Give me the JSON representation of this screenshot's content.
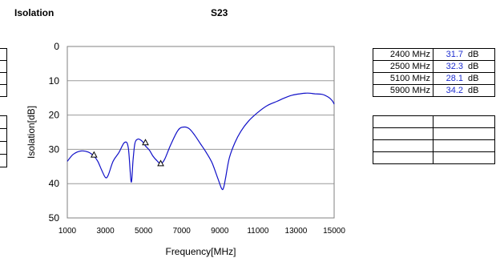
{
  "header": {
    "left_title": "Isolation",
    "center_title": "S23"
  },
  "chart_data": {
    "type": "line",
    "title": "S23",
    "xlabel": "Frequency[MHz]",
    "ylabel": "Isolation[dB]",
    "xlim": [
      1000,
      15000
    ],
    "ylim": [
      0,
      50
    ],
    "y_inverted": true,
    "xticks": [
      1000,
      3000,
      5000,
      7000,
      9000,
      11000,
      13000,
      15000
    ],
    "yticks": [
      0,
      10,
      20,
      30,
      40,
      50
    ],
    "grid": true,
    "line_color": "#1010c8",
    "series": [
      {
        "x": [
          1000,
          1300,
          1700,
          2100,
          2400,
          2600,
          2800,
          3000,
          3150,
          3400,
          3700,
          4000,
          4200,
          4350,
          4450,
          4550,
          4700,
          4850,
          5000,
          5100,
          5300,
          5500,
          5700,
          5900,
          6100,
          6400,
          6800,
          7100,
          7400,
          7700,
          8000,
          8300,
          8600,
          8900,
          9100,
          9200,
          9300,
          9500,
          9800,
          10100,
          10500,
          11000,
          11500,
          12000,
          12400,
          12800,
          13200,
          13600,
          14000,
          14400,
          14700,
          14900,
          15000
        ],
        "y": [
          33.5,
          31.5,
          30.5,
          30.8,
          32.0,
          33.5,
          36.0,
          38.2,
          37.5,
          33.5,
          31.0,
          28.0,
          29.5,
          39.5,
          33.0,
          28.2,
          27.0,
          27.3,
          28.1,
          29.0,
          30.2,
          32.0,
          33.3,
          34.2,
          33.0,
          29.0,
          24.5,
          23.5,
          24.0,
          26.0,
          28.5,
          31.0,
          34.0,
          38.5,
          41.5,
          41.2,
          38.5,
          32.5,
          28.0,
          24.8,
          21.8,
          19.2,
          17.2,
          16.0,
          15.0,
          14.2,
          13.8,
          13.6,
          13.8,
          14.0,
          14.8,
          15.8,
          16.8
        ]
      }
    ],
    "markers": [
      {
        "x": 2400,
        "y": 31.7
      },
      {
        "x": 5100,
        "y": 28.1
      },
      {
        "x": 5900,
        "y": 34.2
      }
    ]
  },
  "values_table": {
    "rows": [
      {
        "freq": "2400 MHz",
        "value": "31.7",
        "unit": "dB"
      },
      {
        "freq": "2500 MHz",
        "value": "32.3",
        "unit": "dB"
      },
      {
        "freq": "5100 MHz",
        "value": "28.1",
        "unit": "dB"
      },
      {
        "freq": "5900 MHz",
        "value": "34.2",
        "unit": "dB"
      }
    ]
  }
}
